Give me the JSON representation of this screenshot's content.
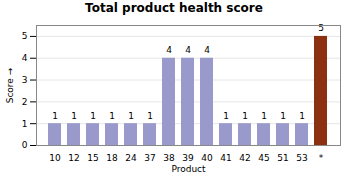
{
  "chart_data": {
    "type": "bar",
    "title": "Total product health score",
    "xlabel": "Product",
    "ylabel": "Score",
    "categories": [
      "10",
      "12",
      "15",
      "18",
      "24",
      "37",
      "38",
      "39",
      "40",
      "41",
      "42",
      "45",
      "51",
      "53",
      "*"
    ],
    "values": [
      1,
      1,
      1,
      1,
      1,
      1,
      4,
      4,
      4,
      1,
      1,
      1,
      1,
      1,
      5
    ],
    "colors": [
      "#9999cc",
      "#9999cc",
      "#9999cc",
      "#9999cc",
      "#9999cc",
      "#9999cc",
      "#9999cc",
      "#9999cc",
      "#9999cc",
      "#9999cc",
      "#9999cc",
      "#9999cc",
      "#9999cc",
      "#9999cc",
      "#8B3010"
    ],
    "ylim": [
      0,
      5.5
    ],
    "yticks": [
      0,
      1,
      2,
      3,
      4,
      5
    ],
    "grid": true,
    "data_labels": true
  }
}
